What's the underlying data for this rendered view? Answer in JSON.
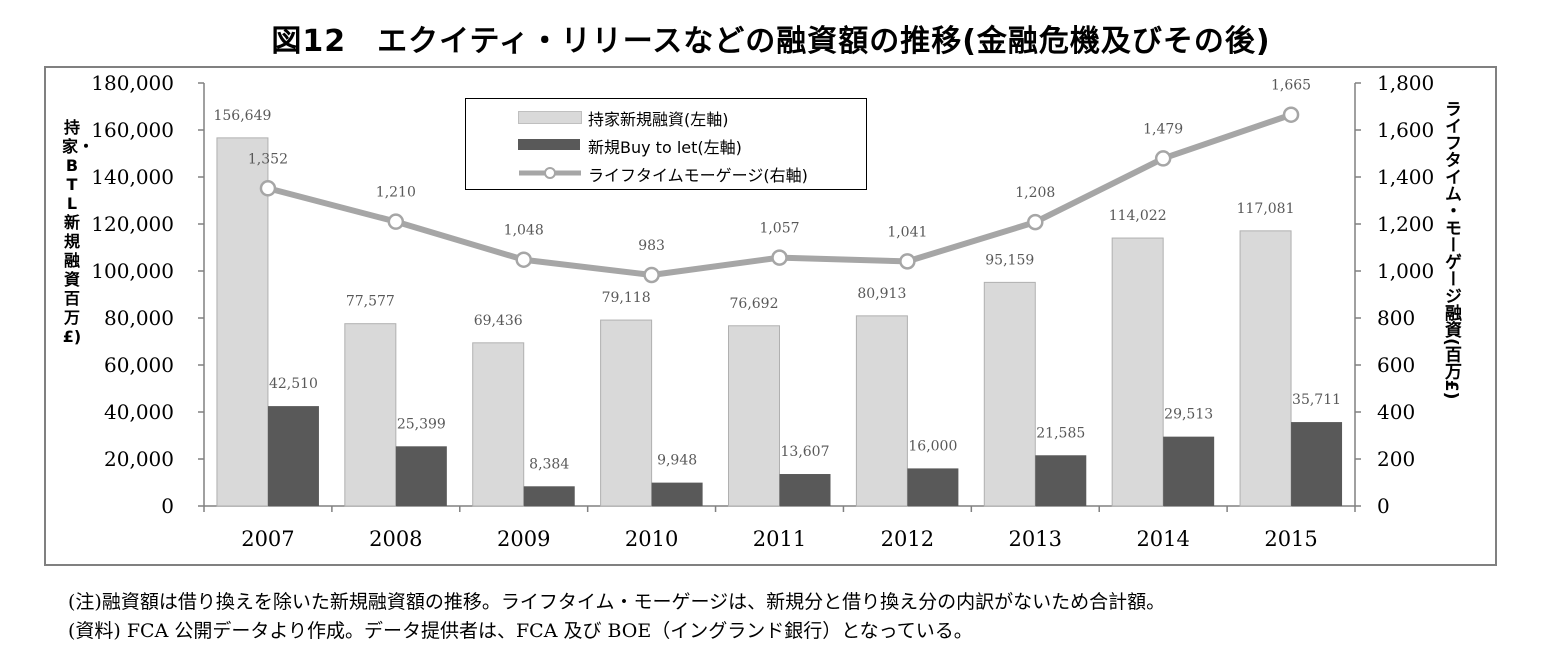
{
  "title": "図12　エクイティ・リリースなどの融資額の推移(金融危機及びその後)",
  "legend": {
    "items": [
      {
        "label": "持家新規融資(左軸)"
      },
      {
        "label": "新規Buy to let(左軸)"
      },
      {
        "label": "ライフタイムモーゲージ(右軸)"
      }
    ]
  },
  "yaxis_left_label": "持家・BTL新規融資百万£)",
  "yaxis_right_label": "ライフタイム・モーゲージ融資(百万£)",
  "notes": {
    "line1": "(注)融資額は借り換えを除いた新規融資額の推移。ライフタイム・モーゲージは、新規分と借り換え分の内訳がないため合計額。",
    "line2": "(資料) FCA 公開データより作成。データ提供者は、FCA 及び BOE（イングランド銀行）となっている。"
  },
  "chart_data": {
    "type": "bar",
    "categories": [
      "2007",
      "2008",
      "2009",
      "2010",
      "2011",
      "2012",
      "2013",
      "2014",
      "2015"
    ],
    "series": [
      {
        "name": "持家新規融資(左軸)",
        "type": "bar",
        "axis": "left",
        "color": "#d9d9d9",
        "values": [
          156649,
          77577,
          69436,
          79118,
          76692,
          80913,
          95159,
          114022,
          117081
        ],
        "labels": [
          "156,649",
          "77,577",
          "69,436",
          "79,118",
          "76,692",
          "80,913",
          "95,159",
          "114,022",
          "117,081"
        ]
      },
      {
        "name": "新規Buy to let(左軸)",
        "type": "bar",
        "axis": "left",
        "color": "#595959",
        "values": [
          42510,
          25399,
          8384,
          9948,
          13607,
          16000,
          21585,
          29513,
          35711
        ],
        "labels": [
          "42,510",
          "25,399",
          "8,384",
          "9,948",
          "13,607",
          "16,000",
          "21,585",
          "29,513",
          "35,711"
        ]
      },
      {
        "name": "ライフタイムモーゲージ(右軸)",
        "type": "line",
        "axis": "right",
        "color": "#a6a6a6",
        "values": [
          1352,
          1210,
          1048,
          983,
          1057,
          1041,
          1208,
          1479,
          1665
        ],
        "labels": [
          "1,352",
          "1,210",
          "1,048",
          "983",
          "1,057",
          "1,041",
          "1,208",
          "1,479",
          "1,665"
        ]
      }
    ],
    "ylim_left": [
      0,
      180000
    ],
    "ylim_right": [
      0,
      1800
    ],
    "yticks_left": [
      "0",
      "20,000",
      "40,000",
      "60,000",
      "80,000",
      "100,000",
      "120,000",
      "140,000",
      "160,000",
      "180,000"
    ],
    "yticks_right": [
      "0",
      "200",
      "400",
      "600",
      "800",
      "1,000",
      "1,200",
      "1,400",
      "1,600",
      "1,800"
    ],
    "grid": false,
    "legend_position": "top-center"
  }
}
